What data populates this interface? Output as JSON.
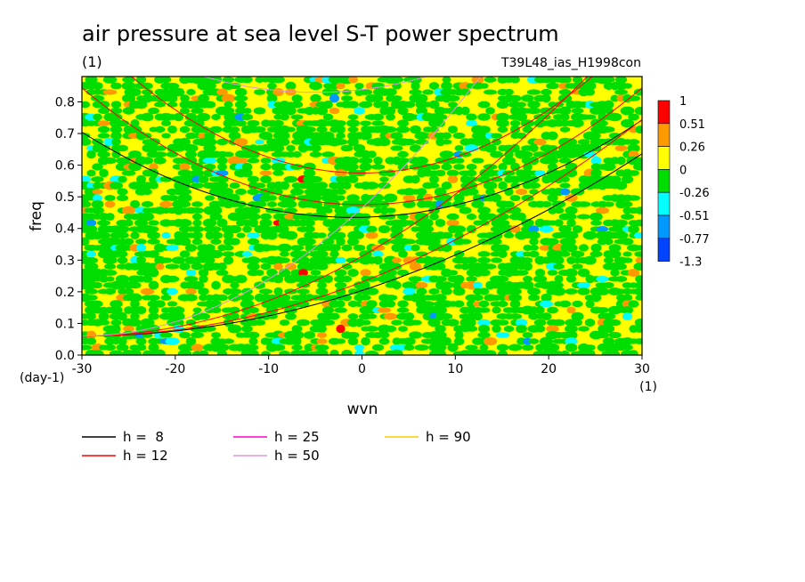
{
  "chart_data": {
    "type": "heatmap",
    "title": "air pressure at sea level S-T power spectrum",
    "title_unit": "(1)",
    "run_label": "T39L48_ias_H1998con",
    "xlabel": "wvn",
    "x_unit": "(1)",
    "ylabel": "freq",
    "y_unit": "(day-1)",
    "xlim": [
      -30,
      30
    ],
    "ylim": [
      0.0,
      0.88
    ],
    "x_ticks": [
      "-30",
      "-20",
      "-10",
      "0",
      "10",
      "20",
      "30"
    ],
    "y_ticks": [
      "0.0",
      "0.1",
      "0.2",
      "0.3",
      "0.4",
      "0.5",
      "0.6",
      "0.7",
      "0.8"
    ],
    "colorbar": {
      "labels": [
        "1",
        "0.51",
        "0.26",
        "0",
        "-0.26",
        "-0.51",
        "-0.77",
        "-1.3"
      ],
      "colors": [
        "#ff0000",
        "#ff9900",
        "#ffff00",
        "#00dd00",
        "#00ffff",
        "#0099ff",
        "#0044ff"
      ]
    },
    "field_note": "noisy field mostly within -0.26..0.26 (green/yellow) with sparse cyan and orange patches",
    "dispersion_curves": [
      {
        "label": "h =  8",
        "color": "#000000"
      },
      {
        "label": "h = 12",
        "color": "#ff0000"
      },
      {
        "label": "h = 25",
        "color": "#ff00cc"
      },
      {
        "label": "h = 50",
        "color": "#dd99dd"
      },
      {
        "label": "h = 90",
        "color": "#ffcc00"
      }
    ],
    "legend_placement": "bottom-left"
  }
}
